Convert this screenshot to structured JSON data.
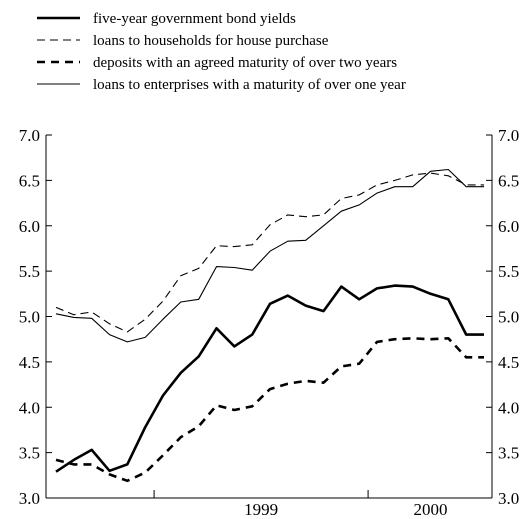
{
  "chart_data": {
    "type": "line",
    "title": "",
    "xlabel": "",
    "ylabel": "",
    "ylim": [
      3.0,
      7.0
    ],
    "yticks": [
      "3.0",
      "3.5",
      "4.0",
      "4.5",
      "5.0",
      "5.5",
      "6.0",
      "6.5",
      "7.0"
    ],
    "xtick_labels": [
      "1999",
      "2000"
    ],
    "x": [
      "1998-07",
      "1998-08",
      "1998-09",
      "1998-10",
      "1998-11",
      "1998-12",
      "1999-01",
      "1999-02",
      "1999-03",
      "1999-04",
      "1999-05",
      "1999-06",
      "1999-07",
      "1999-08",
      "1999-09",
      "1999-10",
      "1999-11",
      "1999-12",
      "2000-01",
      "2000-02",
      "2000-03",
      "2000-04",
      "2000-05",
      "2000-06",
      "2000-07"
    ],
    "grid": false,
    "legend_position": "top-left",
    "series": [
      {
        "name": "five-year government bond yields",
        "style": "solid-thick",
        "values": [
          3.29,
          3.42,
          3.53,
          3.3,
          3.37,
          3.78,
          4.13,
          4.38,
          4.56,
          4.87,
          4.67,
          4.8,
          5.14,
          5.23,
          5.12,
          5.06,
          5.33,
          5.19,
          5.31,
          5.34,
          5.33,
          5.25,
          5.19,
          4.8,
          4.8
        ]
      },
      {
        "name": "loans to households for house purchase",
        "style": "dashed-thin",
        "values": [
          5.1,
          5.02,
          5.05,
          4.92,
          4.83,
          4.97,
          5.17,
          5.45,
          5.53,
          5.78,
          5.77,
          5.79,
          6.01,
          6.12,
          6.1,
          6.12,
          6.3,
          6.34,
          6.45,
          6.5,
          6.56,
          6.58,
          6.55,
          6.45,
          6.45
        ]
      },
      {
        "name": "deposits with an agreed maturity of over two years",
        "style": "dashed-thick",
        "values": [
          3.42,
          3.37,
          3.37,
          3.26,
          3.19,
          3.28,
          3.47,
          3.67,
          3.79,
          4.02,
          3.97,
          4.01,
          4.2,
          4.26,
          4.29,
          4.27,
          4.45,
          4.48,
          4.72,
          4.75,
          4.76,
          4.75,
          4.76,
          4.55,
          4.55
        ]
      },
      {
        "name": "loans to enterprises with a maturity of over one year",
        "style": "solid-thin",
        "values": [
          5.03,
          4.99,
          4.98,
          4.8,
          4.72,
          4.77,
          4.97,
          5.16,
          5.19,
          5.55,
          5.54,
          5.51,
          5.72,
          5.83,
          5.84,
          6.0,
          6.16,
          6.23,
          6.36,
          6.43,
          6.43,
          6.6,
          6.62,
          6.43,
          6.43
        ]
      }
    ]
  },
  "colors": {
    "line": "#000000",
    "background": "#ffffff"
  }
}
